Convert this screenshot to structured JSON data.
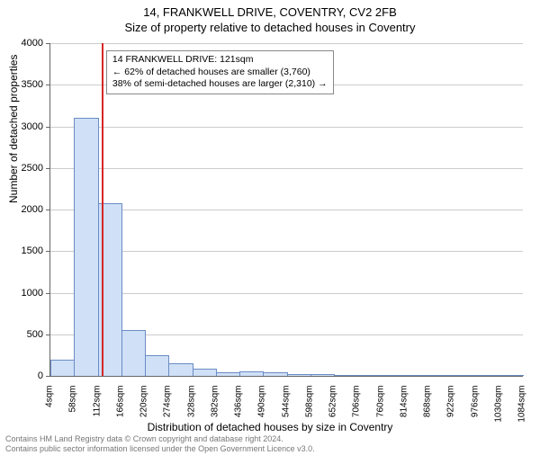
{
  "title": "14, FRANKWELL DRIVE, COVENTRY, CV2 2FB",
  "subtitle": "Size of property relative to detached houses in Coventry",
  "ylabel": "Number of detached properties",
  "xlabel": "Distribution of detached houses by size in Coventry",
  "footer_line1": "Contains HM Land Registry data © Crown copyright and database right 2024.",
  "footer_line2": "Contains public sector information licensed under the Open Government Licence v3.0.",
  "chart": {
    "type": "bar",
    "ylim": [
      0,
      4000
    ],
    "ytick_step": 500,
    "xticks": [
      4,
      58,
      112,
      166,
      220,
      274,
      328,
      382,
      436,
      490,
      544,
      598,
      652,
      706,
      760,
      814,
      868,
      922,
      976,
      1030,
      1084
    ],
    "xtick_unit": "sqm",
    "bin_start": 4,
    "bin_width": 54,
    "bar_fill": "#cfe0f7",
    "bar_stroke": "#6b8cc4",
    "grid_color": "#cccccc",
    "values": [
      180,
      3090,
      2060,
      540,
      240,
      140,
      80,
      30,
      40,
      30,
      15,
      10,
      5,
      5,
      5,
      5,
      0,
      0,
      0,
      0
    ],
    "marker_value": 121,
    "marker_color": "#d62728"
  },
  "annotation": {
    "line1": "14 FRANKWELL DRIVE: 121sqm",
    "line2": "← 62% of detached houses are smaller (3,760)",
    "line3": "38% of semi-detached houses are larger (2,310) →"
  }
}
